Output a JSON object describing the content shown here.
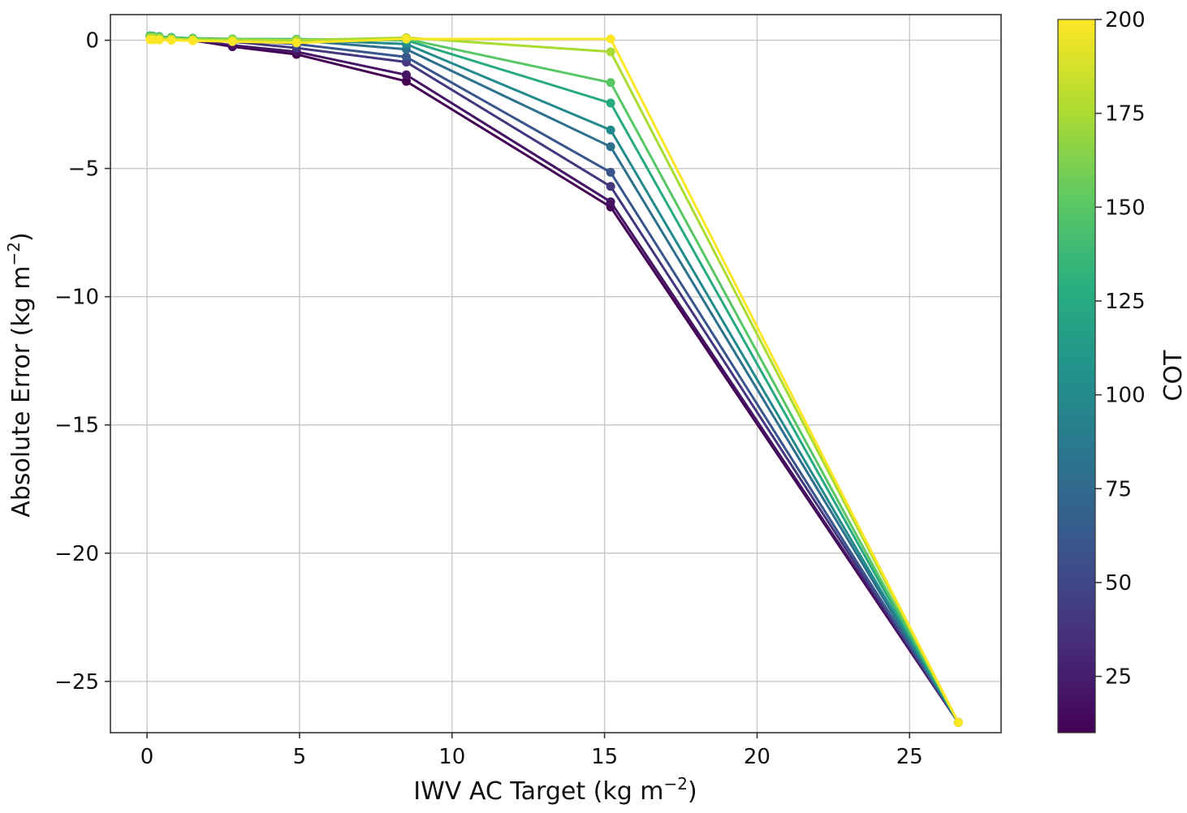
{
  "chart_data": {
    "type": "line",
    "xlabel": "IWV AC Target (kg m",
    "xlabel_sup": "−2",
    "xlabel_end": ")",
    "ylabel": "Absolute Error (kg m",
    "ylabel_sup": "−2",
    "ylabel_end": ")",
    "xlim": [
      -1.2,
      28
    ],
    "ylim": [
      -27,
      1
    ],
    "xticks": [
      0,
      5,
      10,
      15,
      20,
      25
    ],
    "yticks": [
      0,
      -5,
      -10,
      -15,
      -20,
      -25
    ],
    "xtick_labels": [
      "0",
      "5",
      "10",
      "15",
      "20",
      "25"
    ],
    "ytick_labels": [
      "0",
      "−5",
      "−10",
      "−15",
      "−20",
      "−25"
    ],
    "grid": true,
    "colorbar": {
      "label": "COT",
      "range": [
        10,
        200
      ],
      "ticks": [
        25,
        50,
        75,
        100,
        125,
        150,
        175,
        200
      ],
      "tick_labels": [
        "25",
        "50",
        "75",
        "100",
        "125",
        "150",
        "175",
        "200"
      ],
      "colormap": "viridis"
    },
    "x": [
      0.1,
      0.2,
      0.4,
      0.8,
      1.5,
      2.8,
      4.9,
      8.5,
      15.2,
      26.6
    ],
    "series": [
      {
        "cot": 10,
        "values": [
          0.15,
          0.12,
          0.1,
          0.05,
          0.0,
          -0.25,
          -0.55,
          -1.6,
          -6.5,
          -26.6
        ]
      },
      {
        "cot": 20,
        "values": [
          0.15,
          0.12,
          0.1,
          0.05,
          0.0,
          -0.2,
          -0.45,
          -1.35,
          -6.3,
          -26.6
        ]
      },
      {
        "cot": 40,
        "values": [
          0.15,
          0.13,
          0.11,
          0.07,
          0.02,
          -0.05,
          -0.3,
          -0.85,
          -5.7,
          -26.6
        ]
      },
      {
        "cot": 60,
        "values": [
          0.16,
          0.14,
          0.12,
          0.09,
          0.04,
          0.0,
          -0.15,
          -0.65,
          -5.15,
          -26.6
        ]
      },
      {
        "cot": 80,
        "values": [
          0.17,
          0.15,
          0.13,
          0.1,
          0.06,
          0.02,
          0.0,
          -0.35,
          -4.15,
          -26.6
        ]
      },
      {
        "cot": 100,
        "values": [
          0.17,
          0.15,
          0.14,
          0.11,
          0.07,
          0.04,
          0.02,
          -0.15,
          -3.5,
          -26.6
        ]
      },
      {
        "cot": 125,
        "values": [
          0.17,
          0.16,
          0.14,
          0.11,
          0.08,
          0.05,
          0.04,
          0.0,
          -2.45,
          -26.6
        ]
      },
      {
        "cot": 150,
        "values": [
          0.16,
          0.15,
          0.13,
          0.1,
          0.07,
          0.05,
          0.03,
          0.05,
          -1.65,
          -26.6
        ]
      },
      {
        "cot": 175,
        "values": [
          0.1,
          0.1,
          0.08,
          0.05,
          0.03,
          0.02,
          0.0,
          0.1,
          -0.45,
          -26.6
        ]
      },
      {
        "cot": 200,
        "values": [
          0.02,
          0.02,
          0.01,
          0.0,
          -0.02,
          -0.05,
          -0.1,
          0.05,
          0.05,
          -26.6
        ]
      }
    ]
  }
}
